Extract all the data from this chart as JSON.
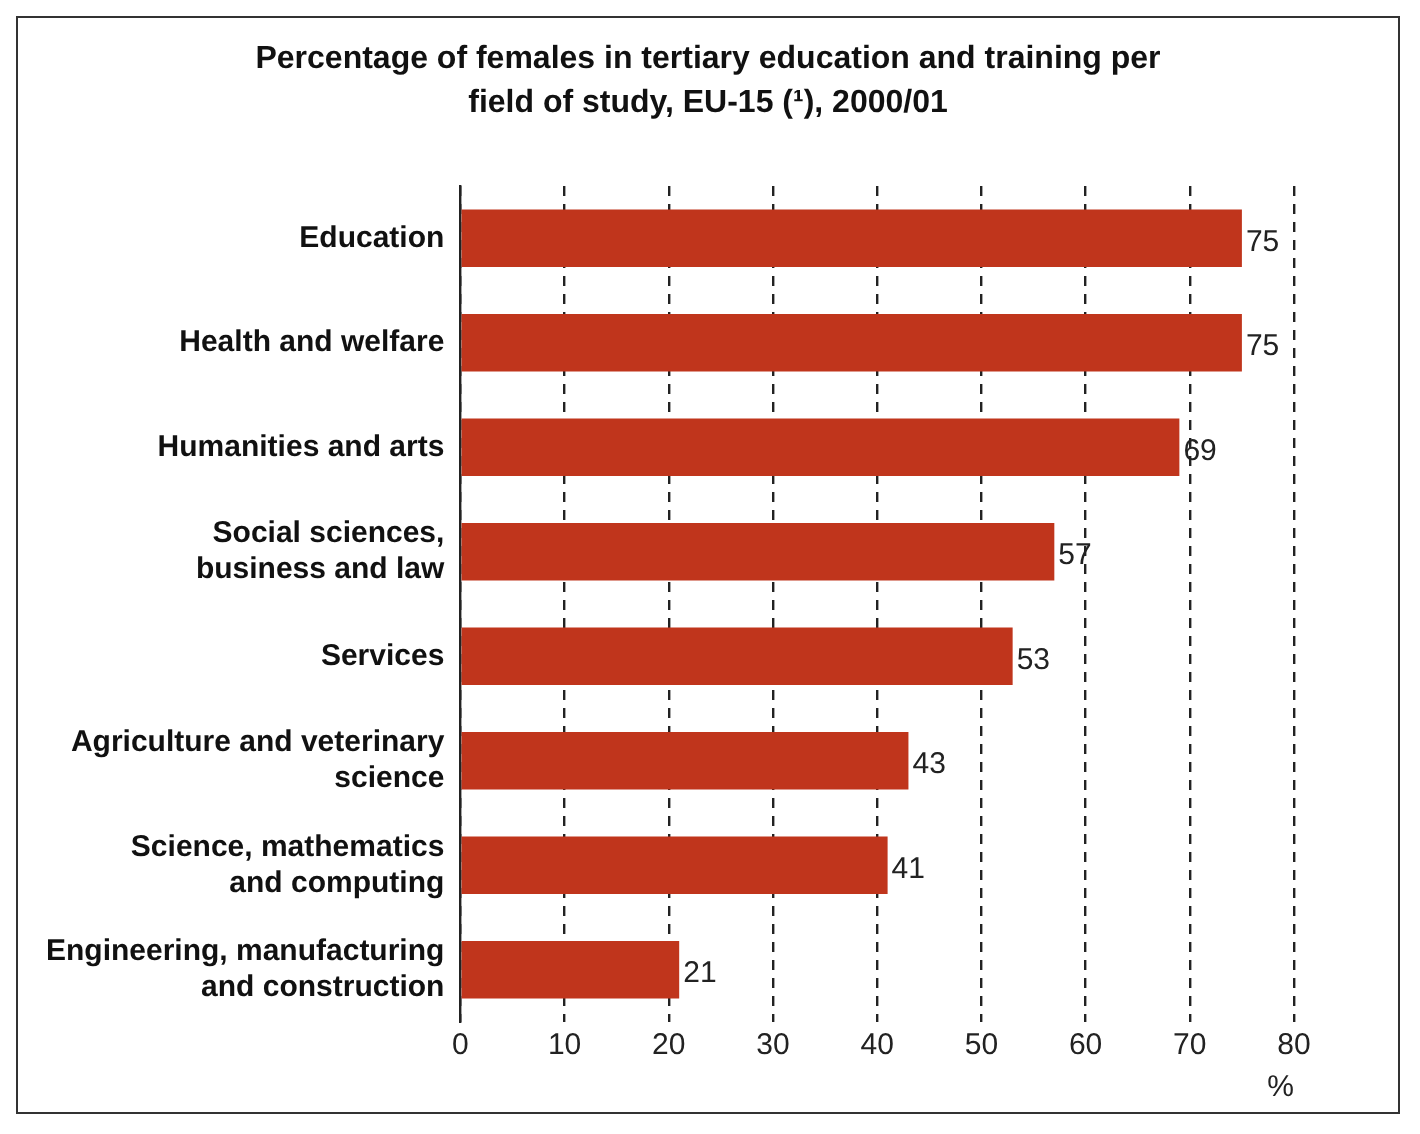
{
  "chart_data": {
    "type": "bar",
    "orientation": "horizontal",
    "title": "Percentage of females in tertiary education and training per field of study, EU-15 (¹), 2000/01",
    "categories": [
      "Education",
      "Health and welfare",
      "Humanities and arts",
      "Social sciences, business and law",
      "Services",
      "Agriculture and veterinary science",
      "Science, mathematics and computing",
      "Engineering, manufacturing and construction"
    ],
    "values": [
      75,
      75,
      69,
      57,
      53,
      43,
      41,
      21
    ],
    "color": "#c0351c",
    "xlim": [
      0,
      80
    ],
    "xticks": [
      0,
      10,
      20,
      30,
      40,
      50,
      60,
      70,
      80
    ],
    "xlabel": "%",
    "grid": "x",
    "legend": false,
    "data_labels": true
  }
}
